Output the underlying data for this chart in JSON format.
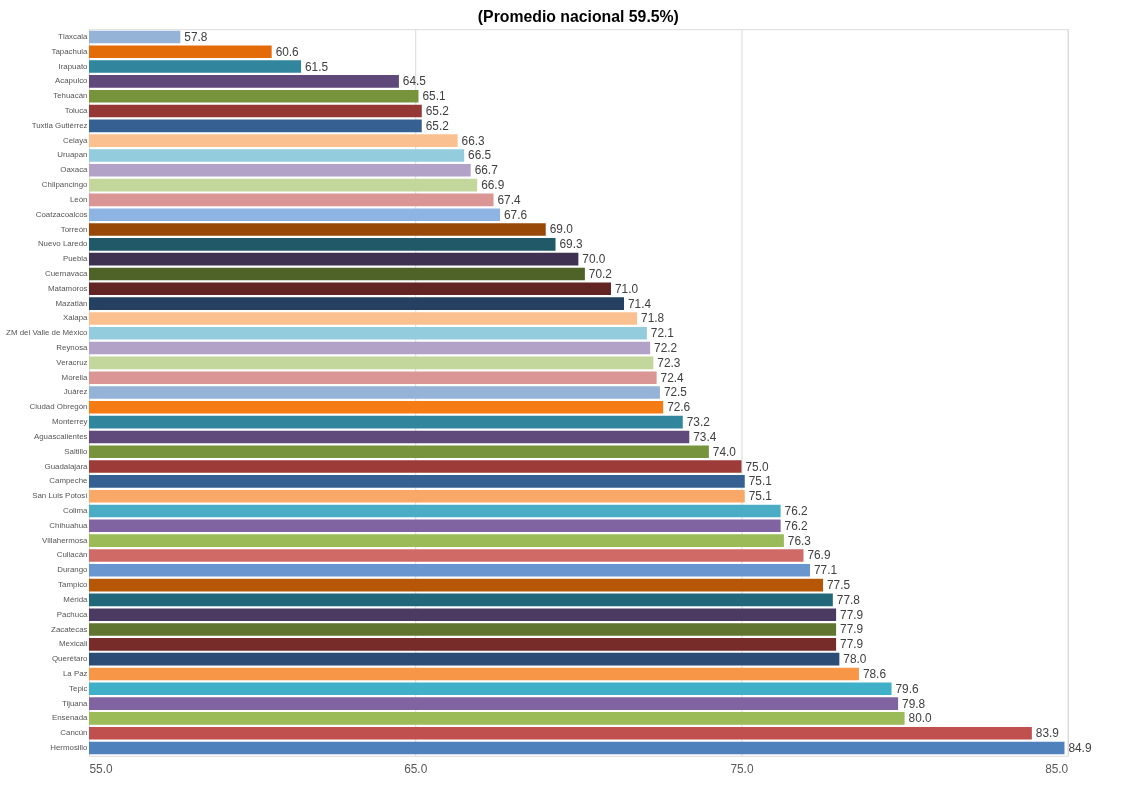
{
  "chart_data": {
    "type": "bar",
    "orientation": "horizontal",
    "title": "(Promedio nacional 59.5%)",
    "categories": [
      "Tlaxcala",
      "Tapachula",
      "Irapuato",
      "Acapulco",
      "Tehuacán",
      "Toluca",
      "Tuxtla Gutiérrez",
      "Celaya",
      "Uruapan",
      "Oaxaca",
      "Chilpancingo",
      "León",
      "Coatzacoalcos",
      "Torreón",
      "Nuevo Laredo",
      "Puebla",
      "Cuernavaca",
      "Matamoros",
      "Mazatlán",
      "Xalapa",
      "ZM del Valle de México",
      "Reynosa",
      "Veracruz",
      "Morelia",
      "Juárez",
      "Ciudad Obregón",
      "Monterrey",
      "Aguascalientes",
      "Saltillo",
      "Guadalajara",
      "Campeche",
      "San Luis Potosí",
      "Colima",
      "Chihuahua",
      "Villahermosa",
      "Culiacán",
      "Durango",
      "Tampico",
      "Mérida",
      "Pachuca",
      "Zacatecas",
      "Mexicali",
      "Querétaro",
      "La Paz",
      "Tepic",
      "Tijuana",
      "Ensenada",
      "Cancún",
      "Hermosillo"
    ],
    "values": [
      57.8,
      60.6,
      61.5,
      64.5,
      65.1,
      65.2,
      65.2,
      66.3,
      66.5,
      66.7,
      66.9,
      67.4,
      67.6,
      69.0,
      69.3,
      70.0,
      70.2,
      71.0,
      71.4,
      71.8,
      72.1,
      72.2,
      72.3,
      72.4,
      72.5,
      72.6,
      73.2,
      73.4,
      74.0,
      75.0,
      75.1,
      75.1,
      76.2,
      76.2,
      76.3,
      76.9,
      77.1,
      77.5,
      77.8,
      77.9,
      77.9,
      77.9,
      78.0,
      78.6,
      79.6,
      79.8,
      80.0,
      83.9,
      84.9
    ],
    "colors": [
      "#95b3d7",
      "#e36c09",
      "#31859c",
      "#5f497a",
      "#77933c",
      "#953735",
      "#376092",
      "#fac090",
      "#93cddd",
      "#b3a2c7",
      "#c3d69b",
      "#d99694",
      "#8eb4e3",
      "#984807",
      "#215968",
      "#3f3151",
      "#4f6228",
      "#632523",
      "#254061",
      "#fac090",
      "#93cddd",
      "#b3a2c7",
      "#c3d69b",
      "#d99694",
      "#95b3d7",
      "#f57c14",
      "#31859c",
      "#604a7b",
      "#77933c",
      "#9c3b38",
      "#376092",
      "#f9a868",
      "#4bacc6",
      "#8064a2",
      "#9bbb59",
      "#d06a67",
      "#6a96d0",
      "#b65708",
      "#23687a",
      "#4b3b62",
      "#5f7530",
      "#772c2a",
      "#2c4d75",
      "#f79646",
      "#40b0c8",
      "#8064a2",
      "#9bbb59",
      "#c0504d",
      "#4f81bd"
    ],
    "xlim": [
      55,
      85
    ],
    "xticks": [
      {
        "value": 55,
        "label": "55.0"
      },
      {
        "value": 65,
        "label": "65.0"
      },
      {
        "value": 75,
        "label": "75.0"
      },
      {
        "value": 85,
        "label": "85.0"
      }
    ],
    "value_labels": [
      "57.8",
      "60.6",
      "61.5",
      "64.5",
      "65.1",
      "65.2",
      "65.2",
      "66.3",
      "66.5",
      "66.7",
      "66.9",
      "67.4",
      "67.6",
      "69.0",
      "69.3",
      "70.0",
      "70.2",
      "71.0",
      "71.4",
      "71.8",
      "72.1",
      "72.2",
      "72.3",
      "72.4",
      "72.5",
      "72.6",
      "73.2",
      "73.4",
      "74.0",
      "75.0",
      "75.1",
      "75.1",
      "76.2",
      "76.2",
      "76.3",
      "76.9",
      "77.1",
      "77.5",
      "77.8",
      "77.9",
      "77.9",
      "77.9",
      "78.0",
      "78.6",
      "79.6",
      "79.8",
      "80.0",
      "83.9",
      "84.9"
    ],
    "grid": "x"
  }
}
